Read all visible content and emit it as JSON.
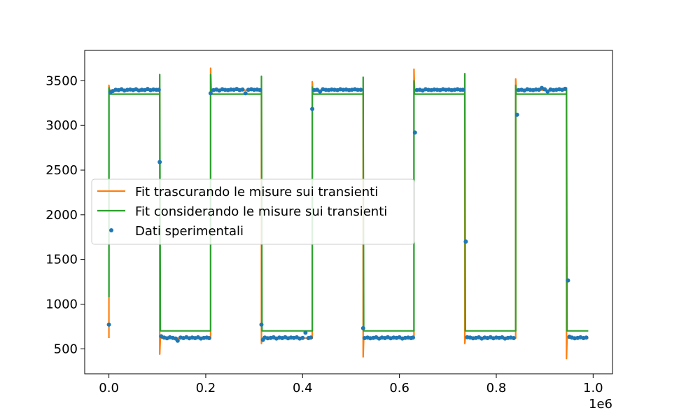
{
  "chart_data": {
    "type": "line",
    "title": "",
    "xlabel": "",
    "ylabel": "",
    "x_offset_label": "1e6",
    "xlim": [
      -50000,
      1040000
    ],
    "ylim": [
      220,
      3840
    ],
    "grid": false,
    "legend_location": "center-left",
    "x_ticks": [
      {
        "value": 0,
        "label": "0.0"
      },
      {
        "value": 200000,
        "label": "0.2"
      },
      {
        "value": 400000,
        "label": "0.4"
      },
      {
        "value": 600000,
        "label": "0.6"
      },
      {
        "value": 800000,
        "label": "0.8"
      },
      {
        "value": 1000000,
        "label": "1.0"
      }
    ],
    "y_ticks": [
      {
        "value": 500,
        "label": "500"
      },
      {
        "value": 1000,
        "label": "1000"
      },
      {
        "value": 1500,
        "label": "1500"
      },
      {
        "value": 2000,
        "label": "2000"
      },
      {
        "value": 2500,
        "label": "2500"
      },
      {
        "value": 3000,
        "label": "3000"
      },
      {
        "value": 3500,
        "label": "3500"
      }
    ],
    "series": [
      {
        "name": "Fit trascurando le misure sui transienti",
        "kind": "line",
        "color": "#ff7f0e",
        "high_level": 3395,
        "low_level": 620,
        "x_end": 990000,
        "transitions": [
          {
            "x": 0,
            "to": "high",
            "overshoot": 3450
          },
          {
            "x": 105000,
            "to": "low",
            "overshoot": 440
          },
          {
            "x": 210000,
            "to": "high",
            "overshoot": 3640
          },
          {
            "x": 315000,
            "to": "low",
            "overshoot": 560
          },
          {
            "x": 420000,
            "to": "high",
            "overshoot": 3490
          },
          {
            "x": 525000,
            "to": "low",
            "overshoot": 410
          },
          {
            "x": 630000,
            "to": "high",
            "overshoot": 3630
          },
          {
            "x": 735000,
            "to": "low",
            "overshoot": 560
          },
          {
            "x": 840000,
            "to": "high",
            "overshoot": 3520
          },
          {
            "x": 945000,
            "to": "low",
            "overshoot": 390
          }
        ]
      },
      {
        "name": "Fit considerando le misure sui transienti",
        "kind": "line",
        "color": "#2ca02c",
        "high_level": 3350,
        "low_level": 700,
        "x_end": 990000,
        "transitions": [
          {
            "x": 0,
            "to": "high",
            "from_value": 1080,
            "overshoot": 3420
          },
          {
            "x": 105000,
            "to": "low",
            "overshoot": 3570
          },
          {
            "x": 210000,
            "to": "high",
            "overshoot": 3570
          },
          {
            "x": 315000,
            "to": "low",
            "overshoot": 3550
          },
          {
            "x": 420000,
            "to": "high",
            "overshoot": 3430
          },
          {
            "x": 525000,
            "to": "low",
            "overshoot": 3540
          },
          {
            "x": 630000,
            "to": "high",
            "overshoot": 3500
          },
          {
            "x": 735000,
            "to": "low",
            "overshoot": 3580
          },
          {
            "x": 840000,
            "to": "high",
            "overshoot": 3450
          },
          {
            "x": 945000,
            "to": "low",
            "overshoot": 3420
          }
        ]
      },
      {
        "name": "Dati sperimentali",
        "kind": "scatter",
        "color": "#1f77b4",
        "values": [
          [
            0,
            770
          ],
          [
            3000,
            3370
          ],
          [
            8000,
            3385
          ],
          [
            14000,
            3400
          ],
          [
            20000,
            3395
          ],
          [
            26000,
            3405
          ],
          [
            32000,
            3390
          ],
          [
            38000,
            3398
          ],
          [
            44000,
            3402
          ],
          [
            50000,
            3395
          ],
          [
            56000,
            3405
          ],
          [
            62000,
            3392
          ],
          [
            68000,
            3400
          ],
          [
            74000,
            3396
          ],
          [
            80000,
            3408
          ],
          [
            86000,
            3394
          ],
          [
            92000,
            3402
          ],
          [
            98000,
            3398
          ],
          [
            103000,
            3400
          ],
          [
            105000,
            2590
          ],
          [
            108000,
            640
          ],
          [
            114000,
            625
          ],
          [
            120000,
            618
          ],
          [
            126000,
            628
          ],
          [
            132000,
            622
          ],
          [
            138000,
            615
          ],
          [
            142000,
            590
          ],
          [
            148000,
            625
          ],
          [
            154000,
            620
          ],
          [
            160000,
            630
          ],
          [
            166000,
            618
          ],
          [
            172000,
            625
          ],
          [
            178000,
            620
          ],
          [
            184000,
            628
          ],
          [
            190000,
            615
          ],
          [
            196000,
            622
          ],
          [
            202000,
            626
          ],
          [
            207000,
            620
          ],
          [
            210000,
            3360
          ],
          [
            216000,
            3395
          ],
          [
            222000,
            3402
          ],
          [
            228000,
            3390
          ],
          [
            234000,
            3405
          ],
          [
            240000,
            3398
          ],
          [
            246000,
            3395
          ],
          [
            252000,
            3402
          ],
          [
            258000,
            3400
          ],
          [
            264000,
            3408
          ],
          [
            270000,
            3395
          ],
          [
            276000,
            3402
          ],
          [
            282000,
            3360
          ],
          [
            288000,
            3400
          ],
          [
            294000,
            3405
          ],
          [
            300000,
            3398
          ],
          [
            306000,
            3402
          ],
          [
            312000,
            3395
          ],
          [
            315000,
            770
          ],
          [
            318000,
            600
          ],
          [
            322000,
            625
          ],
          [
            328000,
            618
          ],
          [
            334000,
            622
          ],
          [
            340000,
            628
          ],
          [
            346000,
            615
          ],
          [
            352000,
            625
          ],
          [
            358000,
            620
          ],
          [
            364000,
            630
          ],
          [
            370000,
            618
          ],
          [
            376000,
            625
          ],
          [
            382000,
            622
          ],
          [
            388000,
            628
          ],
          [
            394000,
            615
          ],
          [
            400000,
            622
          ],
          [
            406000,
            680
          ],
          [
            412000,
            620
          ],
          [
            417000,
            625
          ],
          [
            420000,
            3185
          ],
          [
            424000,
            3395
          ],
          [
            430000,
            3400
          ],
          [
            436000,
            3380
          ],
          [
            442000,
            3405
          ],
          [
            448000,
            3398
          ],
          [
            454000,
            3395
          ],
          [
            460000,
            3402
          ],
          [
            466000,
            3400
          ],
          [
            472000,
            3395
          ],
          [
            478000,
            3405
          ],
          [
            484000,
            3398
          ],
          [
            490000,
            3402
          ],
          [
            496000,
            3395
          ],
          [
            502000,
            3400
          ],
          [
            508000,
            3405
          ],
          [
            514000,
            3398
          ],
          [
            520000,
            3400
          ],
          [
            525000,
            730
          ],
          [
            528000,
            620
          ],
          [
            534000,
            625
          ],
          [
            540000,
            618
          ],
          [
            546000,
            622
          ],
          [
            552000,
            628
          ],
          [
            558000,
            615
          ],
          [
            564000,
            625
          ],
          [
            570000,
            620
          ],
          [
            576000,
            630
          ],
          [
            582000,
            618
          ],
          [
            588000,
            625
          ],
          [
            594000,
            622
          ],
          [
            600000,
            628
          ],
          [
            606000,
            615
          ],
          [
            612000,
            622
          ],
          [
            618000,
            626
          ],
          [
            624000,
            620
          ],
          [
            628000,
            625
          ],
          [
            632000,
            2920
          ],
          [
            636000,
            3395
          ],
          [
            642000,
            3400
          ],
          [
            648000,
            3390
          ],
          [
            654000,
            3405
          ],
          [
            660000,
            3398
          ],
          [
            666000,
            3395
          ],
          [
            672000,
            3402
          ],
          [
            678000,
            3400
          ],
          [
            684000,
            3395
          ],
          [
            690000,
            3405
          ],
          [
            696000,
            3398
          ],
          [
            702000,
            3402
          ],
          [
            708000,
            3395
          ],
          [
            714000,
            3400
          ],
          [
            720000,
            3405
          ],
          [
            726000,
            3398
          ],
          [
            731000,
            3400
          ],
          [
            737000,
            1700
          ],
          [
            740000,
            630
          ],
          [
            746000,
            625
          ],
          [
            752000,
            618
          ],
          [
            758000,
            622
          ],
          [
            764000,
            628
          ],
          [
            770000,
            615
          ],
          [
            776000,
            625
          ],
          [
            782000,
            620
          ],
          [
            788000,
            630
          ],
          [
            794000,
            618
          ],
          [
            800000,
            625
          ],
          [
            806000,
            622
          ],
          [
            812000,
            628
          ],
          [
            818000,
            615
          ],
          [
            824000,
            622
          ],
          [
            830000,
            626
          ],
          [
            836000,
            620
          ],
          [
            843000,
            3120
          ],
          [
            846000,
            3395
          ],
          [
            852000,
            3400
          ],
          [
            858000,
            3390
          ],
          [
            864000,
            3405
          ],
          [
            870000,
            3398
          ],
          [
            876000,
            3395
          ],
          [
            882000,
            3402
          ],
          [
            888000,
            3400
          ],
          [
            894000,
            3420
          ],
          [
            900000,
            3405
          ],
          [
            906000,
            3380
          ],
          [
            912000,
            3402
          ],
          [
            918000,
            3395
          ],
          [
            924000,
            3400
          ],
          [
            930000,
            3405
          ],
          [
            936000,
            3398
          ],
          [
            942000,
            3410
          ],
          [
            948000,
            1265
          ],
          [
            951000,
            635
          ],
          [
            956000,
            625
          ],
          [
            962000,
            618
          ],
          [
            968000,
            622
          ],
          [
            974000,
            628
          ],
          [
            980000,
            620
          ],
          [
            986000,
            625
          ]
        ]
      }
    ]
  }
}
